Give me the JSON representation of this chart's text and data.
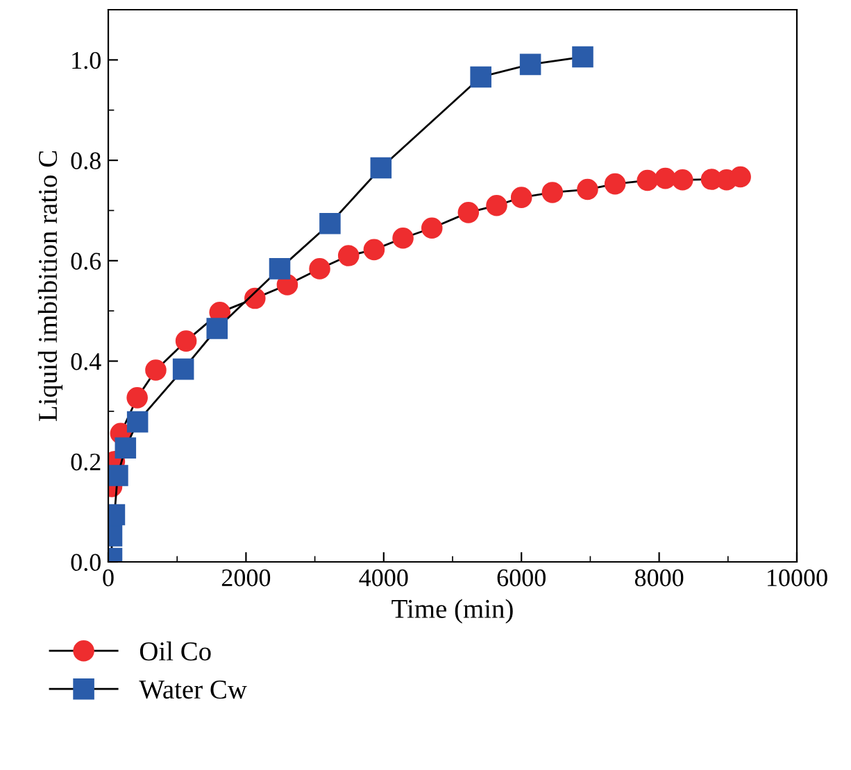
{
  "chart_data": {
    "type": "line",
    "xlabel": "Time (min)",
    "ylabel": "Liquid imbibition ratio C",
    "xlim": [
      0,
      10000
    ],
    "xticks": [
      0,
      2000,
      4000,
      6000,
      8000,
      10000
    ],
    "ylim": [
      0,
      1.1
    ],
    "yticks": [
      {
        "value": 0,
        "label": "0.0"
      },
      {
        "value": 0.2,
        "label": "0.2"
      },
      {
        "value": 0.4,
        "label": "0.4"
      },
      {
        "value": 0.6,
        "label": "0.6"
      },
      {
        "value": 0.8,
        "label": "0.8"
      },
      {
        "value": 1.0,
        "label": "1.0"
      }
    ],
    "grid": false,
    "legend": "bottom left",
    "series": [
      {
        "name": "Oil Co",
        "color": "#ee2d2f",
        "marker": "circle",
        "x": [
          50,
          90,
          180,
          420,
          690,
          1130,
          1620,
          2130,
          2600,
          3070,
          3490,
          3860,
          4280,
          4700,
          5230,
          5640,
          6000,
          6450,
          6960,
          7360,
          7830,
          8090,
          8340,
          8760,
          8980,
          9180
        ],
        "values": [
          0.15,
          0.2,
          0.256,
          0.327,
          0.382,
          0.44,
          0.497,
          0.525,
          0.552,
          0.584,
          0.61,
          0.622,
          0.645,
          0.665,
          0.696,
          0.71,
          0.726,
          0.736,
          0.742,
          0.753,
          0.76,
          0.764,
          0.761,
          0.762,
          0.761,
          0.767
        ]
      },
      {
        "name": "Water Cw",
        "color": "#2a5caa",
        "marker": "square",
        "x": [
          50,
          50,
          90,
          135,
          250,
          425,
          1090,
          1580,
          2490,
          3220,
          3960,
          5410,
          6130,
          6890
        ],
        "values": [
          0.007,
          0.052,
          0.094,
          0.172,
          0.227,
          0.279,
          0.384,
          0.465,
          0.584,
          0.674,
          0.785,
          0.966,
          0.991,
          1.006
        ]
      }
    ]
  }
}
